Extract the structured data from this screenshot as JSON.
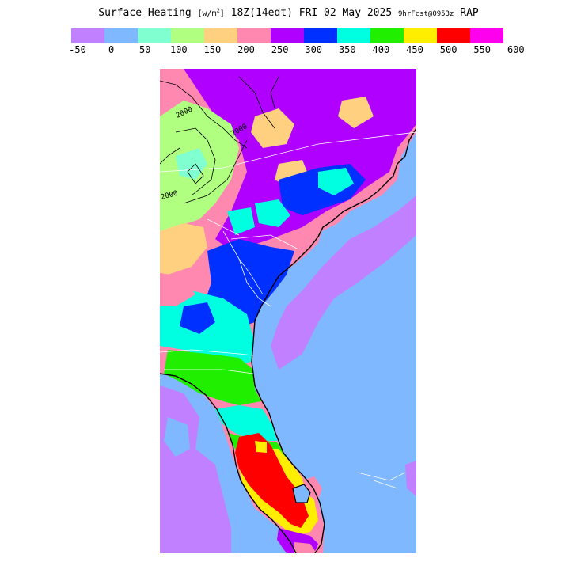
{
  "title": {
    "main": "Surface Heating",
    "unit_open": "[w/m",
    "unit_sup": "2",
    "unit_close": "]",
    "time": "18Z(14edt) FRI 02 May 2025",
    "forecast": "9hrFcst@0953z",
    "model": "RAP"
  },
  "colorbar": {
    "colors": [
      "#c080ff",
      "#80b8ff",
      "#80ffd0",
      "#b0ff80",
      "#ffd080",
      "#ff88b0",
      "#b000ff",
      "#0030ff",
      "#00ffe0",
      "#20f000",
      "#ffee00",
      "#ff0000",
      "#ff00ee"
    ],
    "tick_labels": [
      "-50",
      "0",
      "50",
      "100",
      "150",
      "200",
      "250",
      "300",
      "350",
      "400",
      "450",
      "500",
      "550",
      "600"
    ]
  },
  "map": {
    "contour_labels": [
      "2000",
      "2000",
      "2000"
    ],
    "layer_names": [
      "ocean",
      "land-heating",
      "coastline",
      "state-borders",
      "contours",
      "rivers"
    ]
  }
}
